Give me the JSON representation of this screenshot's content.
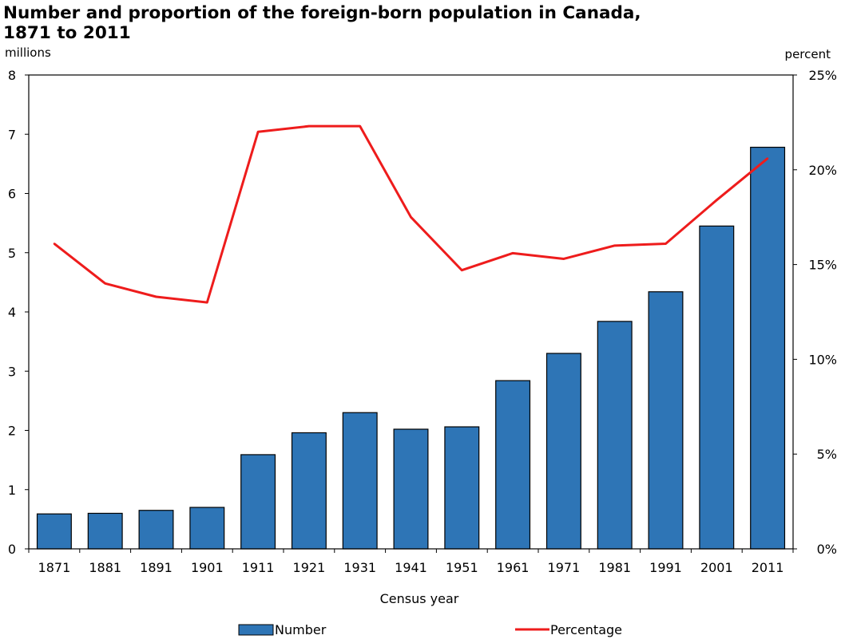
{
  "chart_data": {
    "type": "bar",
    "title_line1": "Number and proportion of the foreign-born population in Canada,",
    "title_line2": "1871 to 2011",
    "y_left_unit": "millions",
    "y_right_unit": "percent",
    "xlabel": "Census year",
    "ylim_left": [
      0,
      8
    ],
    "ylim_right": [
      0,
      25
    ],
    "y_left_ticks": [
      "0",
      "1",
      "2",
      "3",
      "4",
      "5",
      "6",
      "7",
      "8"
    ],
    "y_right_ticks": [
      "0%",
      "5%",
      "10%",
      "15%",
      "20%",
      "25%"
    ],
    "categories": [
      "1871",
      "1881",
      "1891",
      "1901",
      "1911",
      "1921",
      "1931",
      "1941",
      "1951",
      "1961",
      "1971",
      "1981",
      "1991",
      "2001",
      "2011"
    ],
    "series": [
      {
        "name": "Number",
        "kind": "bar",
        "axis": "left",
        "color": "#2E75B6",
        "values": [
          0.59,
          0.6,
          0.65,
          0.7,
          1.59,
          1.96,
          2.3,
          2.02,
          2.06,
          2.84,
          3.3,
          3.84,
          4.34,
          5.45,
          6.78
        ]
      },
      {
        "name": "Percentage",
        "kind": "line",
        "axis": "right",
        "color": "#EE1C1C",
        "values": [
          16.1,
          14.0,
          13.3,
          13.0,
          22.0,
          22.3,
          22.3,
          17.5,
          14.7,
          15.6,
          15.3,
          16.0,
          16.1,
          18.4,
          20.6
        ]
      }
    ],
    "grid": false,
    "legend": "bottom"
  }
}
